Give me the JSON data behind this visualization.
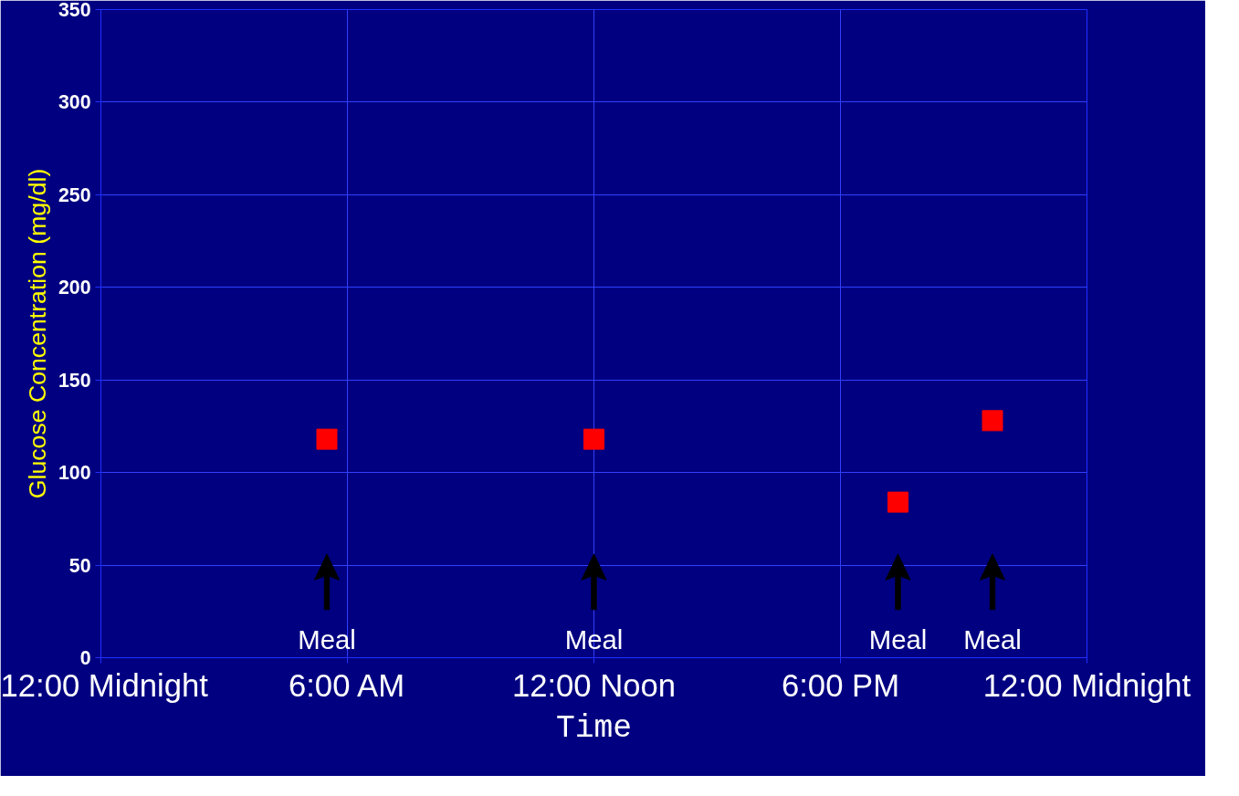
{
  "chart_data": {
    "type": "scatter",
    "xlabel": "Time",
    "ylabel": "Glucose Concentration (mg/dl)",
    "x": [
      5.5,
      12,
      19.4,
      21.7
    ],
    "series": [
      {
        "color": "#ff0000",
        "values": [
          118,
          118,
          84,
          128
        ]
      }
    ],
    "marker": "square",
    "grid": true,
    "xlim": [
      0,
      24
    ],
    "xticks": [
      {
        "value": 0,
        "label": "12:00 Midnight"
      },
      {
        "value": 6,
        "label": "6:00 AM"
      },
      {
        "value": 12,
        "label": "12:00 Noon"
      },
      {
        "value": 18,
        "label": "6:00 PM"
      },
      {
        "value": 24,
        "label": "12:00 Midnight"
      }
    ],
    "ylim": [
      0,
      350
    ],
    "yticks": [
      0,
      50,
      100,
      150,
      200,
      250,
      300,
      350
    ],
    "annotations": [
      "Meal",
      "Meal",
      "Meal",
      "Meal"
    ]
  }
}
